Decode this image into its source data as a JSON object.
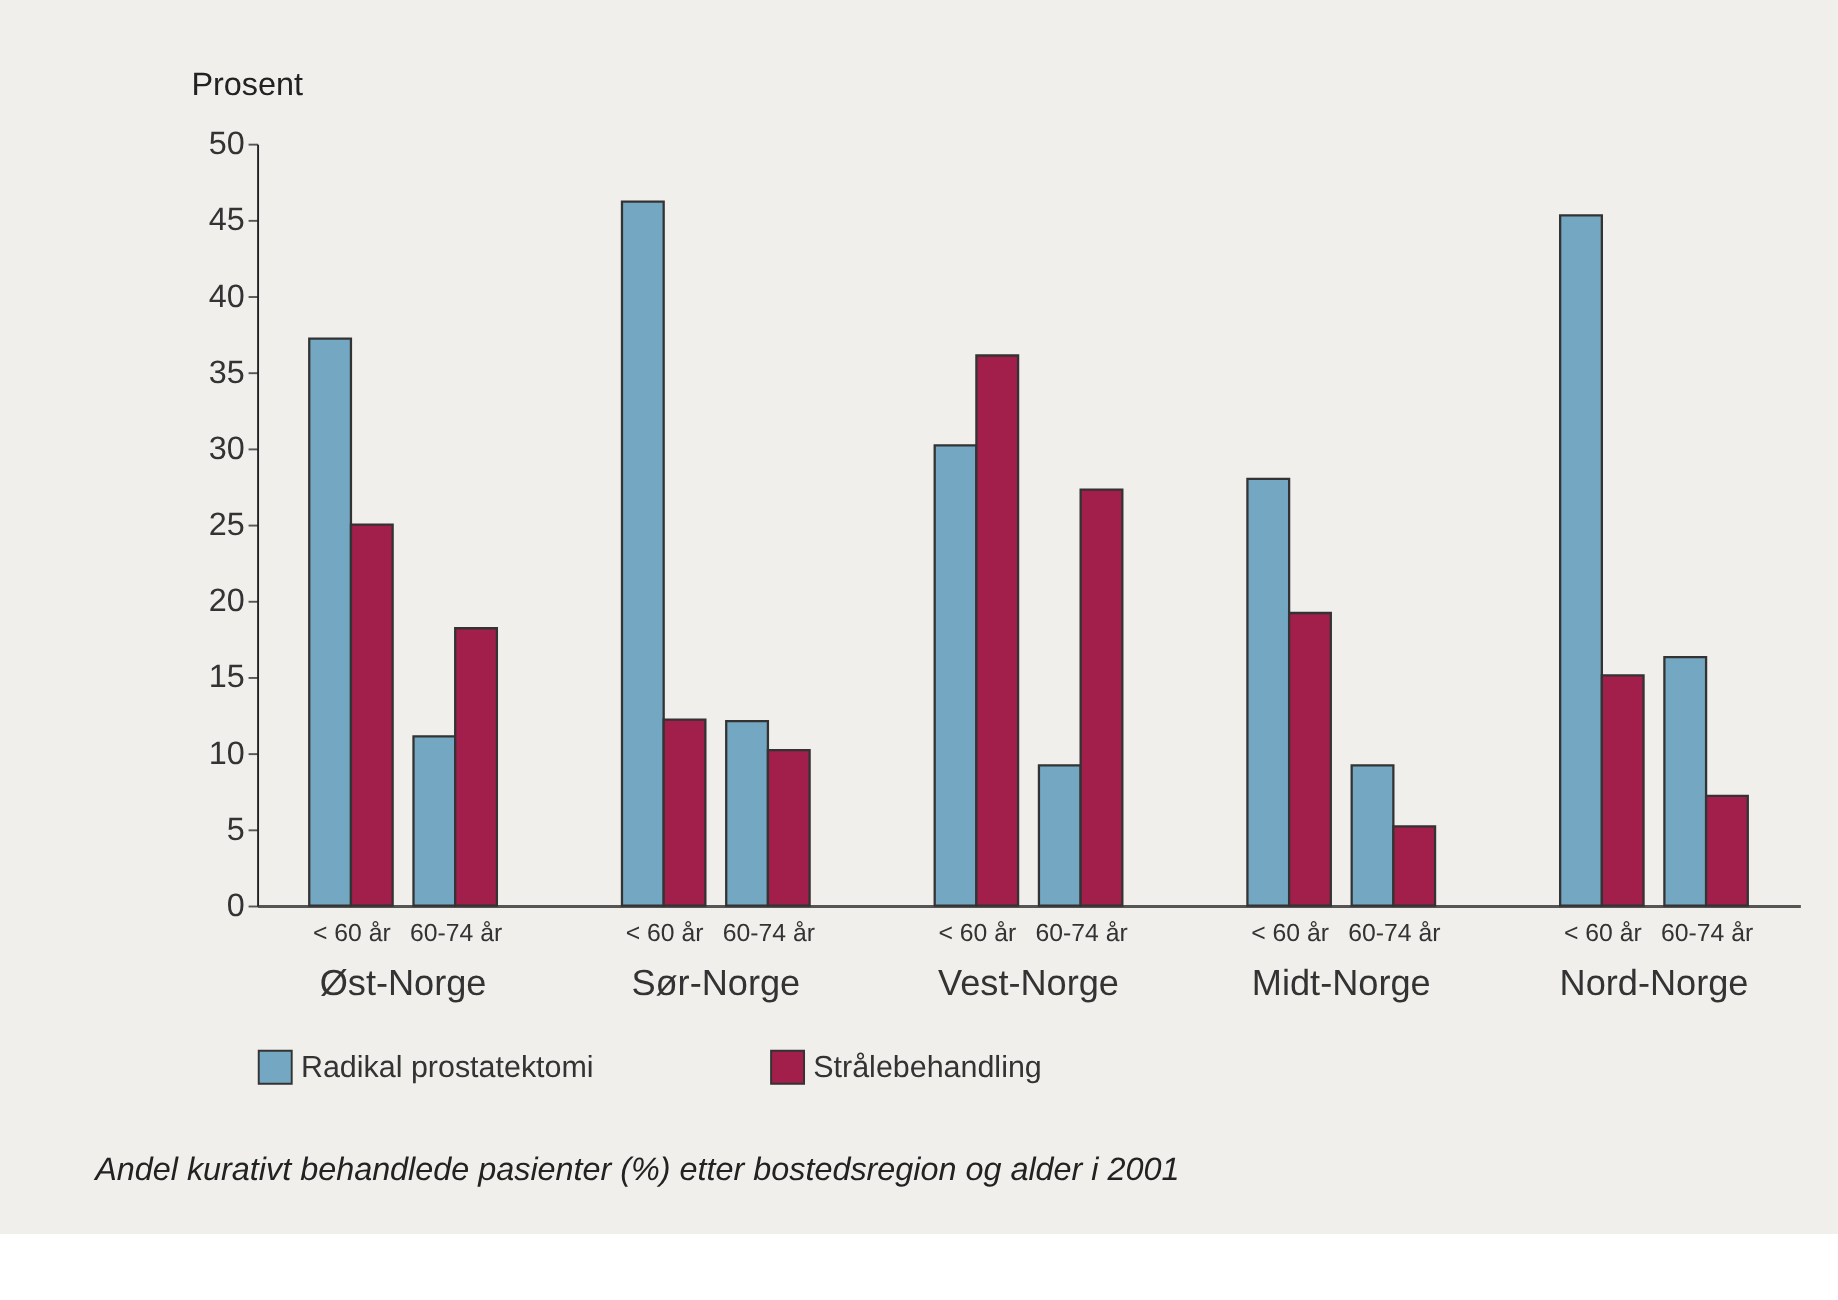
{
  "chart_data": {
    "type": "bar",
    "title": "Andel kurativt behandlede pasienter (%) etter bostedsregion og alder i 2001",
    "ylabel": "Prosent",
    "categories": [
      "< 60 år",
      "60-74 år",
      "< 60 år",
      "60-74 år",
      "< 60 år",
      "60-74 år",
      "< 60 år",
      "60-74 år",
      "< 60 år",
      "60-74 år"
    ],
    "annotations": [
      "Øst-Norge",
      "Sør-Norge",
      "Vest-Norge",
      "Midt-Norge",
      "Nord-Norge"
    ],
    "series": [
      {
        "name": "Radikal prostatektomi",
        "color": "#74a8c2",
        "values": [
          37.2,
          11.1,
          46.2,
          12.1,
          30.2,
          9.2,
          28.0,
          9.2,
          45.3,
          16.3
        ]
      },
      {
        "name": "Strålebehandling",
        "color": "#a31f4b",
        "values": [
          25.0,
          18.2,
          12.2,
          10.2,
          36.1,
          27.3,
          19.2,
          5.2,
          15.1,
          7.2
        ]
      }
    ],
    "ylim": [
      0,
      50
    ],
    "yticks": [
      0,
      5,
      10,
      15,
      20,
      25,
      30,
      35,
      40,
      45,
      50
    ],
    "grid": false,
    "legend": "bottom"
  }
}
